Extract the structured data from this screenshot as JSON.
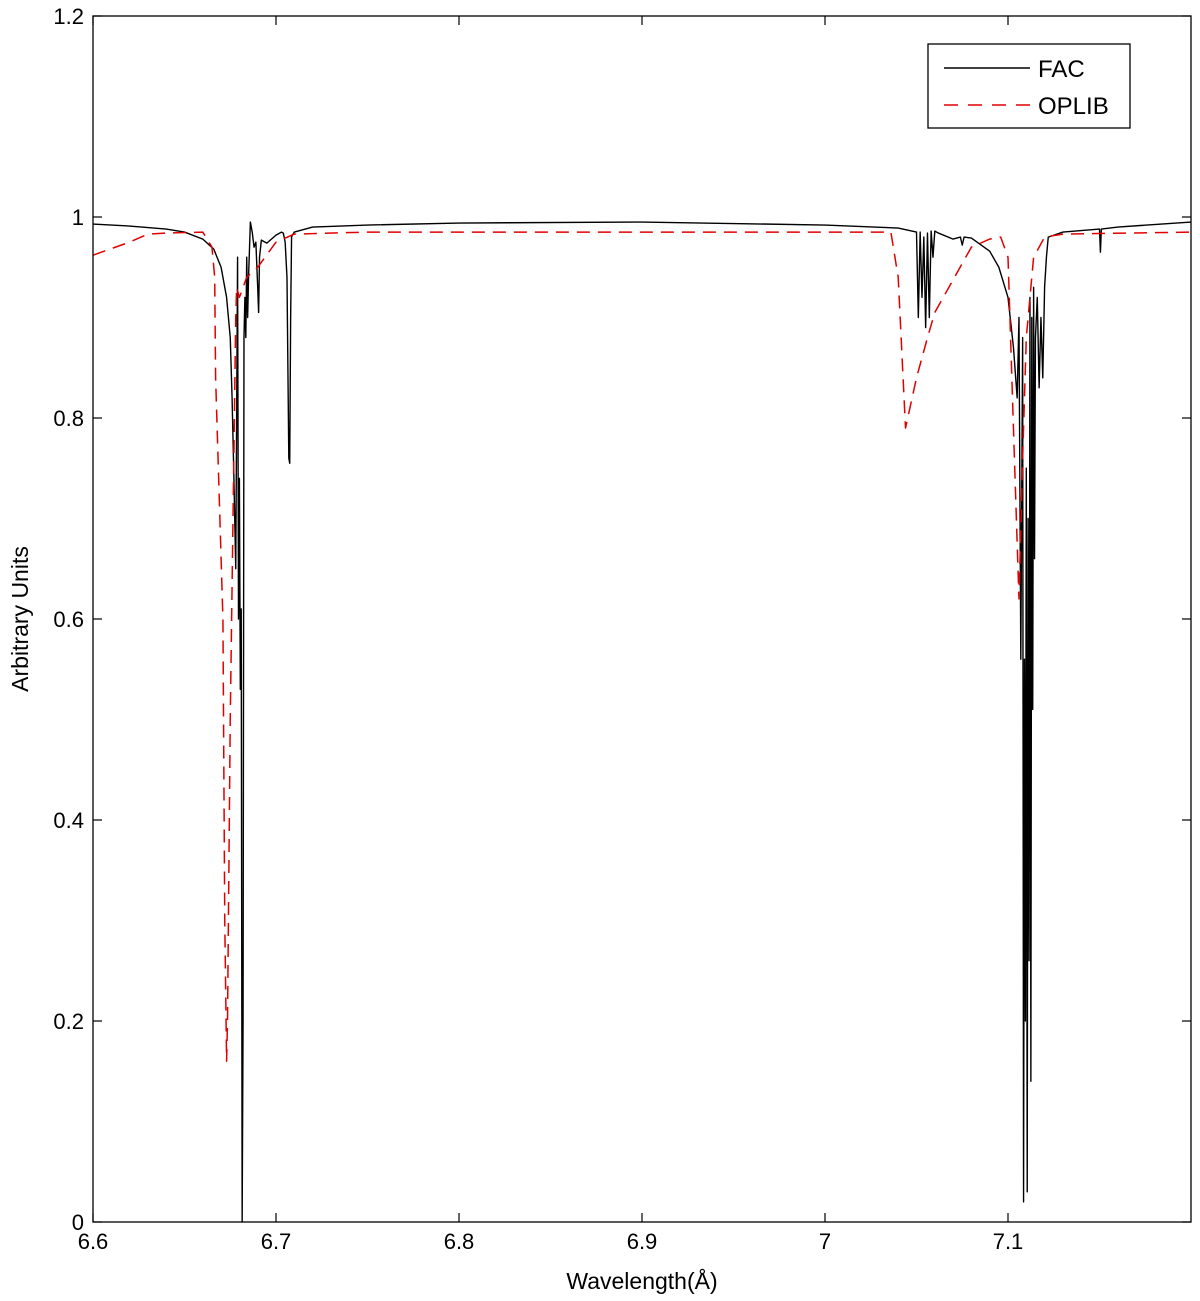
{
  "chart_data": {
    "type": "line",
    "title": "",
    "xlabel": "Wavelength(Å)",
    "ylabel": "Arbitrary Units",
    "xlim": [
      6.6,
      7.2
    ],
    "ylim": [
      0,
      1.2
    ],
    "xticks": [
      6.6,
      6.7,
      6.8,
      6.9,
      7.0,
      7.1
    ],
    "xtick_labels": [
      "6.6",
      "6.7",
      "6.8",
      "6.9",
      "7",
      "7.1"
    ],
    "yticks": [
      0,
      0.2,
      0.4,
      0.6,
      0.8,
      1.0,
      1.2
    ],
    "ytick_labels": [
      "0",
      "0.2",
      "0.4",
      "0.6",
      "0.8",
      "1",
      "1.2"
    ],
    "grid": false,
    "legend_position": "top-right",
    "series": [
      {
        "name": "FAC",
        "color": "#000000",
        "style": "solid",
        "x": [
          6.6,
          6.62,
          6.64,
          6.65,
          6.66,
          6.666,
          6.67,
          6.673,
          6.675,
          6.676,
          6.677,
          6.678,
          6.679,
          6.6795,
          6.68,
          6.6805,
          6.681,
          6.6815,
          6.682,
          6.6825,
          6.683,
          6.6835,
          6.684,
          6.6845,
          6.685,
          6.686,
          6.687,
          6.688,
          6.689,
          6.69,
          6.6905,
          6.691,
          6.692,
          6.695,
          6.7,
          6.703,
          6.704,
          6.705,
          6.706,
          6.707,
          6.7075,
          6.708,
          6.7085,
          6.709,
          6.71,
          6.72,
          6.75,
          6.8,
          6.9,
          7.0,
          7.04,
          7.05,
          7.051,
          7.052,
          7.053,
          7.054,
          7.055,
          7.056,
          7.057,
          7.058,
          7.059,
          7.06,
          7.062,
          7.07,
          7.074,
          7.075,
          7.076,
          7.08,
          7.09,
          7.095,
          7.1,
          7.103,
          7.105,
          7.106,
          7.107,
          7.108,
          7.1085,
          7.109,
          7.1095,
          7.11,
          7.1105,
          7.111,
          7.1115,
          7.112,
          7.1125,
          7.113,
          7.1135,
          7.114,
          7.1145,
          7.115,
          7.116,
          7.117,
          7.118,
          7.119,
          7.12,
          7.121,
          7.122,
          7.13,
          7.15,
          7.1505,
          7.151,
          7.16,
          7.2
        ],
        "y": [
          0.993,
          0.991,
          0.988,
          0.985,
          0.978,
          0.968,
          0.95,
          0.92,
          0.88,
          0.82,
          0.74,
          0.65,
          0.96,
          0.6,
          0.74,
          0.53,
          0.61,
          0.0,
          0.2,
          0.88,
          0.92,
          0.88,
          0.96,
          0.9,
          0.94,
          0.995,
          0.985,
          0.97,
          0.975,
          0.93,
          0.905,
          0.96,
          0.977,
          0.974,
          0.982,
          0.985,
          0.984,
          0.975,
          0.94,
          0.76,
          0.755,
          0.9,
          0.98,
          0.982,
          0.985,
          0.99,
          0.992,
          0.994,
          0.995,
          0.992,
          0.989,
          0.985,
          0.9,
          0.985,
          0.92,
          0.98,
          0.89,
          0.984,
          0.9,
          0.986,
          0.96,
          0.986,
          0.984,
          0.978,
          0.98,
          0.972,
          0.98,
          0.979,
          0.966,
          0.95,
          0.92,
          0.87,
          0.82,
          0.9,
          0.56,
          0.88,
          0.02,
          0.56,
          0.2,
          0.75,
          0.03,
          0.7,
          0.26,
          0.92,
          0.14,
          0.9,
          0.51,
          0.93,
          0.66,
          0.88,
          0.92,
          0.83,
          0.9,
          0.84,
          0.93,
          0.96,
          0.98,
          0.985,
          0.988,
          0.965,
          0.988,
          0.99,
          0.995
        ]
      },
      {
        "name": "OPLIB",
        "color": "#e00000",
        "style": "dashed",
        "x": [
          6.6,
          6.62,
          6.63,
          6.64,
          6.66,
          6.665,
          6.6665,
          6.667,
          6.669,
          6.671,
          6.672,
          6.673,
          6.6735,
          6.675,
          6.678,
          6.6785,
          6.68,
          6.682,
          6.684,
          6.69,
          6.7,
          6.71,
          6.75,
          6.8,
          6.9,
          7.0,
          7.036,
          7.04,
          7.044,
          7.05,
          7.056,
          7.06,
          7.08,
          7.09,
          7.096,
          7.1,
          7.1035,
          7.106,
          7.108,
          7.11,
          7.114,
          7.12,
          7.13,
          7.2
        ],
        "y": [
          0.962,
          0.975,
          0.983,
          0.984,
          0.985,
          0.97,
          0.94,
          0.84,
          0.72,
          0.6,
          0.3,
          0.16,
          0.2,
          0.5,
          0.9,
          0.93,
          0.92,
          0.93,
          0.94,
          0.95,
          0.975,
          0.983,
          0.985,
          0.985,
          0.985,
          0.985,
          0.985,
          0.94,
          0.79,
          0.84,
          0.88,
          0.905,
          0.97,
          0.978,
          0.98,
          0.96,
          0.76,
          0.62,
          0.76,
          0.88,
          0.96,
          0.98,
          0.983,
          0.985
        ]
      }
    ]
  }
}
